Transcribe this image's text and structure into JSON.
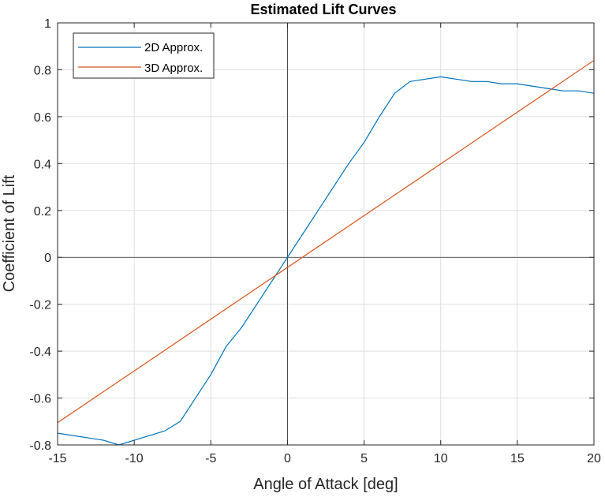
{
  "chart_data": {
    "type": "line",
    "title": "Estimated Lift Curves",
    "xlabel": "Angle of Attack [deg]",
    "ylabel": "Coefficient of Lift",
    "xlim": [
      -15,
      20
    ],
    "ylim": [
      -0.8,
      1
    ],
    "xticks": [
      -15,
      -10,
      -5,
      0,
      5,
      10,
      15,
      20
    ],
    "yticks": [
      -0.8,
      -0.6,
      -0.4,
      -0.2,
      0,
      0.2,
      0.4,
      0.6,
      0.8,
      1
    ],
    "xtick_labels": [
      "-15",
      "-10",
      "-5",
      "0",
      "5",
      "10",
      "15",
      "20"
    ],
    "ytick_labels": [
      "-0.8",
      "-0.6",
      "-0.4",
      "-0.2",
      "0",
      "0.2",
      "0.4",
      "0.6",
      "0.8",
      "1"
    ],
    "grid": true,
    "zero_lines": true,
    "legend_position": "top-left",
    "series": [
      {
        "name": "2D Approx.",
        "color": "#0072BD",
        "x": [
          -15,
          -14,
          -13,
          -12,
          -11,
          -10,
          -9,
          -8,
          -7,
          -6,
          -5,
          -4,
          -3,
          -2,
          -1,
          0,
          1,
          2,
          3,
          4,
          5,
          6,
          7,
          8,
          9,
          10,
          11,
          12,
          13,
          14,
          15,
          16,
          17,
          18,
          19,
          20
        ],
        "y": [
          -0.75,
          -0.76,
          -0.77,
          -0.78,
          -0.8,
          -0.78,
          -0.76,
          -0.74,
          -0.7,
          -0.6,
          -0.5,
          -0.38,
          -0.3,
          -0.2,
          -0.1,
          0.0,
          0.1,
          0.2,
          0.3,
          0.4,
          0.49,
          0.6,
          0.7,
          0.75,
          0.76,
          0.77,
          0.76,
          0.75,
          0.75,
          0.74,
          0.74,
          0.73,
          0.72,
          0.71,
          0.71,
          0.7
        ]
      },
      {
        "name": "3D Approx.",
        "color": "#D95319",
        "x": [
          -15,
          20
        ],
        "y": [
          -0.705,
          0.84
        ]
      }
    ]
  }
}
